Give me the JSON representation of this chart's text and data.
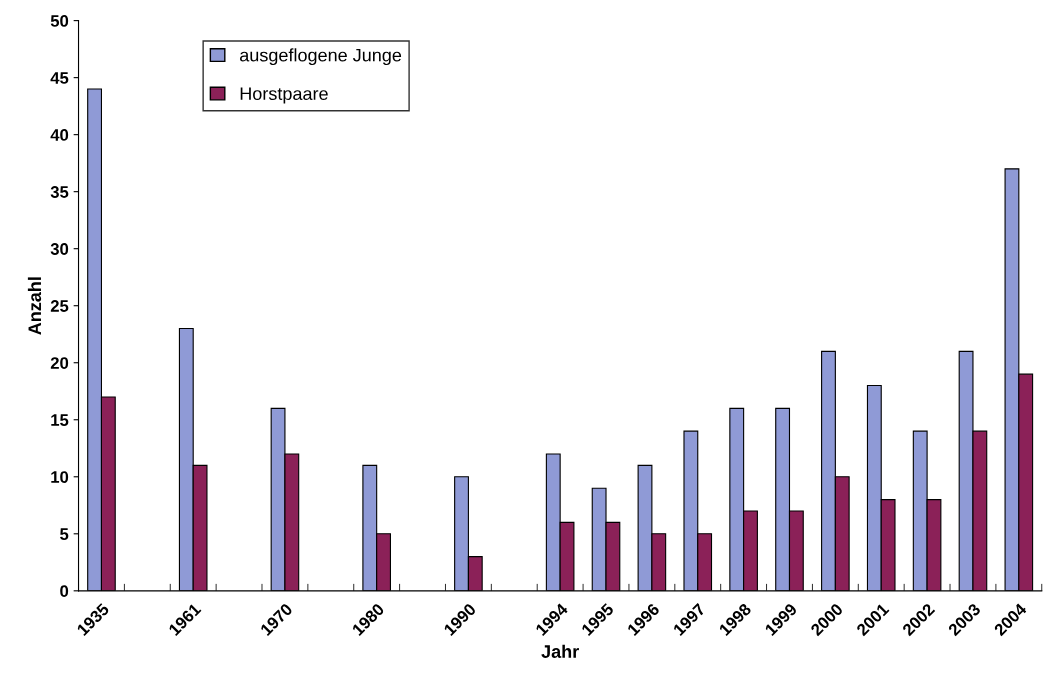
{
  "chart_data": {
    "type": "bar",
    "xlabel": "Jahr",
    "ylabel": "Anzahl",
    "categories": [
      "1935",
      null,
      "1961",
      null,
      "1970",
      null,
      "1980",
      null,
      "1990",
      null,
      "1994",
      "1995",
      "1996",
      "1997",
      "1998",
      "1999",
      "2000",
      "2001",
      "2002",
      "2003",
      "2004"
    ],
    "series": [
      {
        "name": "ausgeflogene Junge",
        "color": "#8f9ad6",
        "values": [
          44,
          null,
          23,
          null,
          16,
          null,
          11,
          null,
          10,
          null,
          12,
          9,
          11,
          14,
          16,
          16,
          21,
          18,
          14,
          21,
          37
        ]
      },
      {
        "name": "Horstpaare",
        "color": "#8b2158",
        "values": [
          17,
          null,
          11,
          null,
          12,
          null,
          5,
          null,
          3,
          null,
          6,
          6,
          5,
          5,
          7,
          7,
          10,
          8,
          8,
          14,
          19
        ]
      }
    ],
    "ylim": [
      0,
      50
    ],
    "yticks": [
      0,
      5,
      10,
      15,
      20,
      25,
      30,
      35,
      40,
      45,
      50
    ],
    "grid": false,
    "legend": "top left"
  }
}
